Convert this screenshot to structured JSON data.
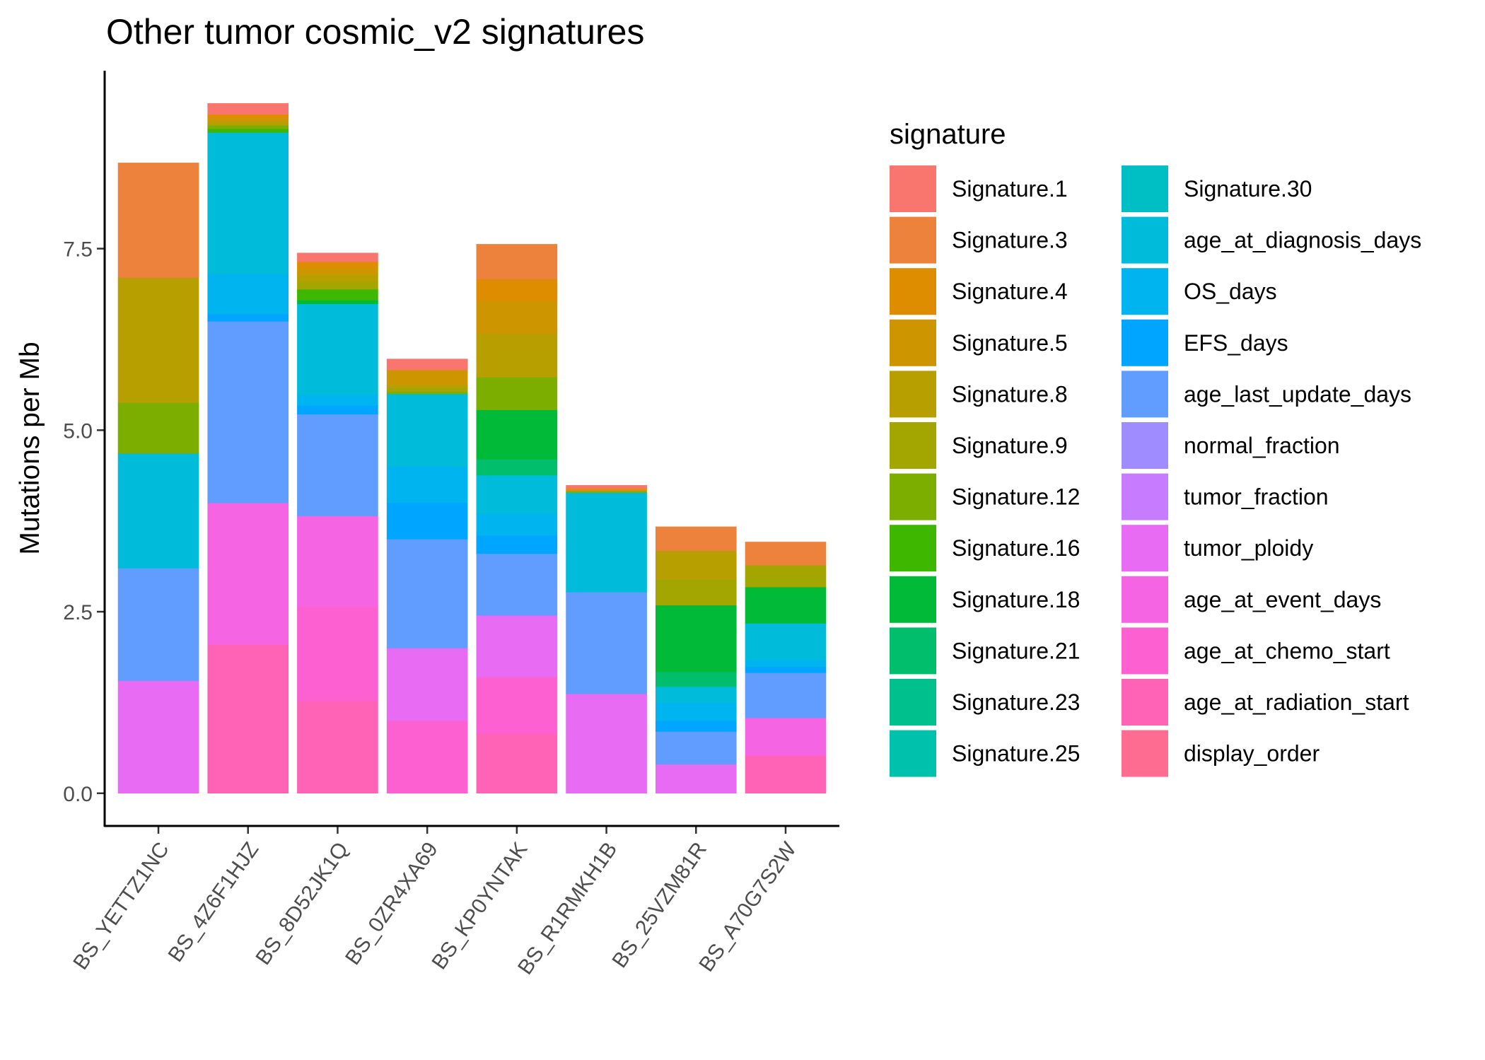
{
  "chart_data": {
    "type": "bar",
    "stacked": true,
    "title": "Other tumor cosmic_v2 signatures",
    "xlabel": "",
    "ylabel": "Mutations per Mb",
    "ylim": [
      -0.45,
      9.95
    ],
    "yticks": [
      "0.0",
      "2.5",
      "5.0",
      "7.5"
    ],
    "ytick_values": [
      0,
      2.5,
      5.0,
      7.5
    ],
    "grid": false,
    "legend": {
      "title": "signature",
      "placement": "right",
      "columns": 2
    },
    "categories": [
      "BS_YETTZ1NC",
      "BS_4Z6F1HJZ",
      "BS_8D52JK1Q",
      "BS_0ZR4XA69",
      "BS_KP0YNTAK",
      "BS_R1RMKH1B",
      "BS_25VZM81R",
      "BS_A70G7S2W"
    ],
    "series": [
      {
        "name": "Signature.1",
        "color": "#F8766D",
        "values": [
          0,
          0.15,
          0.12,
          0.15,
          0,
          0.03,
          0,
          0
        ]
      },
      {
        "name": "Signature.3",
        "color": "#EC823C",
        "values": [
          1.58,
          0,
          0,
          0,
          0.48,
          0.03,
          0.33,
          0.32
        ]
      },
      {
        "name": "Signature.4",
        "color": "#DE8C00",
        "values": [
          0,
          0.05,
          0.08,
          0,
          0.3,
          0,
          0,
          0
        ]
      },
      {
        "name": "Signature.5",
        "color": "#CD9600",
        "values": [
          0,
          0.05,
          0.1,
          0.2,
          0.45,
          0.02,
          0,
          0
        ]
      },
      {
        "name": "Signature.8",
        "color": "#B79F00",
        "values": [
          1.72,
          0.05,
          0.1,
          0.05,
          0.6,
          0,
          0.4,
          0
        ]
      },
      {
        "name": "Signature.9",
        "color": "#A3A500",
        "values": [
          0,
          0,
          0.1,
          0.05,
          0,
          0,
          0.35,
          0.3
        ]
      },
      {
        "name": "Signature.12",
        "color": "#7CAE00",
        "values": [
          0.7,
          0.05,
          0,
          0.03,
          0.45,
          0.02,
          0,
          0
        ]
      },
      {
        "name": "Signature.16",
        "color": "#3DB700",
        "values": [
          0,
          0.05,
          0.15,
          0,
          0,
          0,
          0,
          0
        ]
      },
      {
        "name": "Signature.18",
        "color": "#00BA38",
        "values": [
          0,
          0,
          0.05,
          0,
          0.68,
          0,
          0.92,
          0.5
        ]
      },
      {
        "name": "Signature.21",
        "color": "#00BE6B",
        "values": [
          0,
          0,
          0,
          0,
          0.22,
          0,
          0.2,
          0
        ]
      },
      {
        "name": "Signature.23",
        "color": "#00C08D",
        "values": [
          0,
          0,
          0,
          0,
          0,
          0,
          0,
          0
        ]
      },
      {
        "name": "Signature.25",
        "color": "#00C1AB",
        "values": [
          0,
          0,
          0,
          0,
          0,
          0,
          0,
          0
        ]
      },
      {
        "name": "Signature.30",
        "color": "#00BFC4",
        "values": [
          0,
          0,
          0,
          0,
          0,
          0,
          0,
          0
        ]
      },
      {
        "name": "age_at_diagnosis_days",
        "color": "#00BBDA",
        "values": [
          1.58,
          1.95,
          1.25,
          1.0,
          0.53,
          1.37,
          0.22,
          0.5
        ]
      },
      {
        "name": "OS_days",
        "color": "#00B4EF",
        "values": [
          0,
          0.55,
          0.15,
          0.5,
          0.3,
          0,
          0.25,
          0.1
        ]
      },
      {
        "name": "EFS_days",
        "color": "#00A5FF",
        "values": [
          0,
          0.1,
          0.12,
          0.5,
          0.25,
          0,
          0.15,
          0.08
        ]
      },
      {
        "name": "age_last_update_days",
        "color": "#619CFF",
        "values": [
          1.55,
          2.5,
          1.4,
          1.5,
          0.85,
          1.4,
          0.45,
          0.62
        ]
      },
      {
        "name": "normal_fraction",
        "color": "#9F8CFF",
        "values": [
          0,
          0,
          0,
          0,
          0,
          0,
          0,
          0
        ]
      },
      {
        "name": "tumor_fraction",
        "color": "#C77CFF",
        "values": [
          0,
          0,
          0,
          0,
          0,
          0,
          0,
          0
        ]
      },
      {
        "name": "tumor_ploidy",
        "color": "#E76BF3",
        "values": [
          1.55,
          0,
          0,
          1.0,
          0.85,
          1.37,
          0.4,
          0
        ]
      },
      {
        "name": "age_at_event_days",
        "color": "#F564E3",
        "values": [
          0,
          1.95,
          1.25,
          0,
          0,
          0,
          0,
          0.52
        ]
      },
      {
        "name": "age_at_chemo_start",
        "color": "#FD61D1",
        "values": [
          0,
          0,
          1.3,
          1.0,
          0.78,
          0,
          0,
          0
        ]
      },
      {
        "name": "age_at_radiation_start",
        "color": "#FF63B6",
        "values": [
          0,
          2.05,
          1.27,
          0,
          0.82,
          0,
          0,
          0.52
        ]
      },
      {
        "name": "display_order",
        "color": "#FF6C91",
        "values": [
          0,
          0,
          0,
          0,
          0,
          0,
          0,
          0
        ]
      }
    ]
  }
}
